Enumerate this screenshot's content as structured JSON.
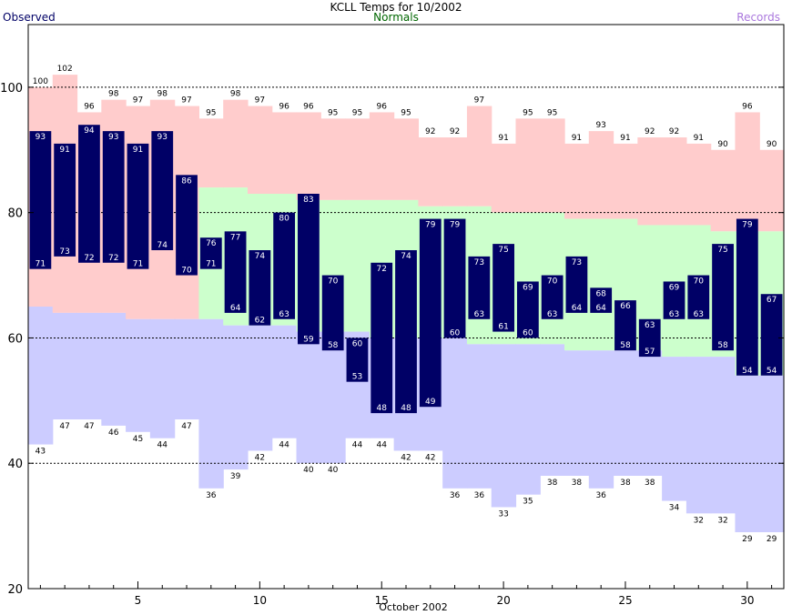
{
  "chart_data": {
    "type": "bar",
    "title": "KCLL Temps for 10/2002",
    "xlabel": "October 2002",
    "ylabel": "",
    "legend": {
      "observed": "Observed",
      "normals": "Normals",
      "records": "Records"
    },
    "ylim": [
      20,
      110
    ],
    "xlim": [
      0.5,
      31.5
    ],
    "yticks": [
      20,
      40,
      60,
      80,
      100
    ],
    "xticks": [
      5,
      10,
      15,
      20,
      25,
      30
    ],
    "grid": "dashed at y=40,60,80,100",
    "days": [
      1,
      2,
      3,
      4,
      5,
      6,
      7,
      8,
      9,
      10,
      11,
      12,
      13,
      14,
      15,
      16,
      17,
      18,
      19,
      20,
      21,
      22,
      23,
      24,
      25,
      26,
      27,
      28,
      29,
      30,
      31
    ],
    "observed_high": [
      93,
      91,
      94,
      93,
      91,
      93,
      86,
      76,
      77,
      74,
      80,
      83,
      70,
      60,
      72,
      74,
      79,
      79,
      73,
      75,
      69,
      70,
      73,
      68,
      66,
      63,
      69,
      70,
      75,
      79,
      67
    ],
    "observed_low": [
      71,
      73,
      72,
      72,
      71,
      74,
      70,
      71,
      64,
      62,
      63,
      59,
      58,
      53,
      48,
      48,
      49,
      60,
      63,
      61,
      60,
      63,
      64,
      64,
      58,
      57,
      63,
      63,
      58,
      54,
      54
    ],
    "record_high": [
      100,
      102,
      96,
      98,
      97,
      98,
      97,
      95,
      98,
      97,
      96,
      96,
      95,
      95,
      96,
      95,
      92,
      92,
      97,
      91,
      95,
      95,
      91,
      93,
      91,
      92,
      92,
      91,
      90,
      96,
      90
    ],
    "record_low": [
      43,
      47,
      47,
      46,
      45,
      44,
      47,
      36,
      39,
      42,
      44,
      40,
      40,
      44,
      44,
      42,
      42,
      36,
      36,
      33,
      35,
      38,
      38,
      36,
      38,
      38,
      34,
      32,
      32,
      29,
      29
    ],
    "normal_high": [
      null,
      null,
      null,
      null,
      null,
      null,
      null,
      84,
      84,
      83,
      83,
      82,
      82,
      82,
      82,
      82,
      81,
      81,
      81,
      80,
      80,
      80,
      79,
      79,
      79,
      78,
      78,
      78,
      77,
      77,
      77
    ],
    "normal_low": [
      65,
      64,
      64,
      64,
      63,
      63,
      63,
      63,
      62,
      62,
      62,
      61,
      61,
      61,
      60,
      60,
      60,
      60,
      59,
      59,
      59,
      59,
      58,
      58,
      58,
      58,
      57,
      57,
      57,
      54,
      54
    ],
    "colors": {
      "record_band": "#ffcccc",
      "normal_band": "#ccffcc",
      "low_band": "#ccccff",
      "observed_bar": "#000066",
      "bar_label": "#ffffff",
      "grid": "#000000",
      "title": "#000000",
      "observed_legend": "#000066",
      "normals_legend": "#006600",
      "records_legend": "#aa77dd"
    }
  }
}
